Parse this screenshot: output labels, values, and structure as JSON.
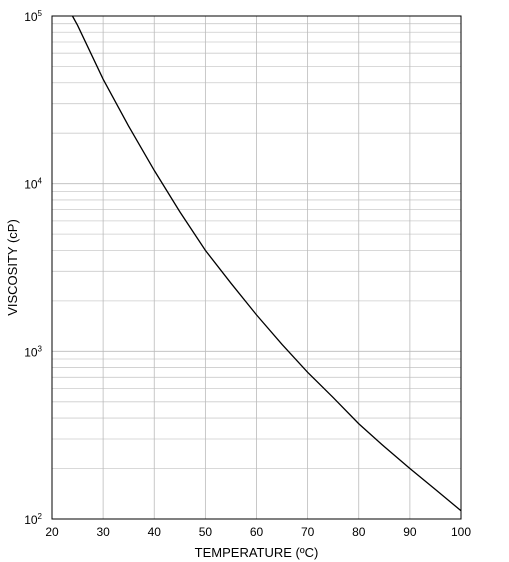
{
  "chart_data": {
    "type": "line",
    "title": "",
    "xlabel": "TEMPERATURE (ºC)",
    "ylabel": "VISCOSITY (cP)",
    "xlim": [
      20,
      100
    ],
    "ylim": [
      100,
      100000
    ],
    "yscale": "log",
    "grid": true,
    "x_ticks": [
      20,
      30,
      40,
      50,
      60,
      70,
      80,
      90,
      100
    ],
    "y_ticks": [
      {
        "base": "10",
        "exp": "2",
        "value": 100
      },
      {
        "base": "10",
        "exp": "3",
        "value": 1000
      },
      {
        "base": "10",
        "exp": "4",
        "value": 10000
      },
      {
        "base": "10",
        "exp": "5",
        "value": 100000
      }
    ],
    "series": [
      {
        "x": [
          24,
          25,
          30,
          35,
          40,
          45,
          50,
          55,
          60,
          65,
          70,
          75,
          80,
          85,
          90,
          95,
          100
        ],
        "y": [
          100000,
          88000,
          42000,
          22000,
          12000,
          6800,
          4000,
          2550,
          1650,
          1100,
          750,
          530,
          370,
          270,
          200,
          150,
          112
        ]
      }
    ]
  }
}
